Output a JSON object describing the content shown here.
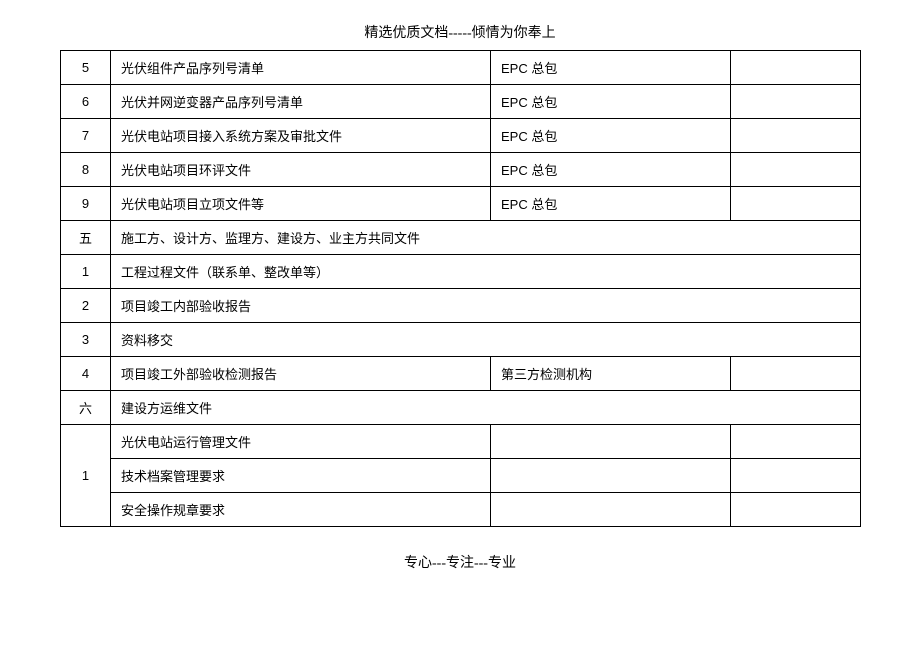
{
  "header": {
    "text": "精选优质文档-----倾情为你奉上"
  },
  "footer": {
    "text": "专心---专注---专业"
  },
  "table": {
    "rows": [
      {
        "num": "5",
        "num_class": "",
        "desc": "光伏组件产品序列号清单",
        "owner": "EPC 总包",
        "colspan": 1
      },
      {
        "num": "6",
        "num_class": "",
        "desc": "光伏并网逆变器产品序列号清单",
        "owner": "EPC 总包",
        "colspan": 1
      },
      {
        "num": "7",
        "num_class": "",
        "desc": "光伏电站项目接入系统方案及审批文件",
        "owner": "EPC 总包",
        "colspan": 1
      },
      {
        "num": "8",
        "num_class": "",
        "desc": "光伏电站项目环评文件",
        "owner": "EPC 总包",
        "colspan": 1
      },
      {
        "num": "9",
        "num_class": "",
        "desc": "光伏电站项目立项文件等",
        "owner": "EPC 总包",
        "colspan": 1
      },
      {
        "num": "五",
        "num_class": "chinese-num",
        "desc": "施工方、设计方、监理方、建设方、业主方共同文件",
        "owner": "",
        "colspan": 3
      },
      {
        "num": "1",
        "num_class": "",
        "desc": "工程过程文件（联系单、整改单等）",
        "owner": "",
        "colspan": 3
      },
      {
        "num": "2",
        "num_class": "",
        "desc": "项目竣工内部验收报告",
        "owner": "",
        "colspan": 3
      },
      {
        "num": "3",
        "num_class": "",
        "desc": "资料移交",
        "owner": "",
        "colspan": 3
      },
      {
        "num": "4",
        "num_class": "",
        "desc": "项目竣工外部验收检测报告",
        "owner": "第三方检测机构",
        "colspan": 1
      },
      {
        "num": "六",
        "num_class": "chinese-num",
        "desc": "建设方运维文件",
        "owner": "",
        "colspan": 3
      }
    ],
    "merged_group": {
      "num": "1",
      "items": [
        {
          "desc": "光伏电站运行管理文件",
          "owner": ""
        },
        {
          "desc": "技术档案管理要求",
          "owner": ""
        },
        {
          "desc": "安全操作规章要求",
          "owner": ""
        }
      ]
    }
  }
}
